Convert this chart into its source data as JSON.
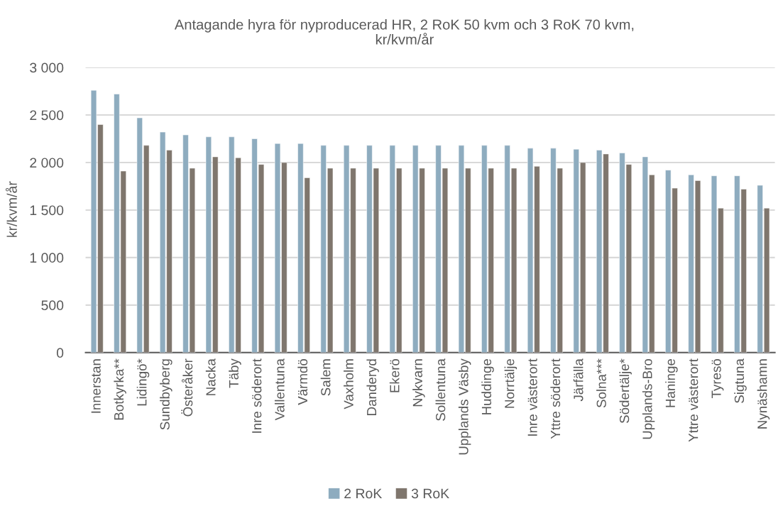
{
  "chart_data": {
    "type": "bar",
    "title": "Antagande hyra för nyproducerad HR, 2 RoK 50 kvm och 3 RoK 70 kvm,\nkr/kvm/år",
    "ylabel": "kr/kvm/år",
    "categories": [
      "Innerstan",
      "Botkyrka**",
      "Lidingö*",
      "Sundbyberg",
      "Österåker",
      "Nacka",
      "Täby",
      "Inre söderort",
      "Vallentuna",
      "Värmdö",
      "Salem",
      "Vaxholm",
      "Danderyd",
      "Ekerö",
      "Nykvarn",
      "Sollentuna",
      "Upplands Väsby",
      "Huddinge",
      "Norrtälje",
      "Inre västerort",
      "Yttre söderort",
      "Järfälla",
      "Solna***",
      "Södertälje*",
      "Upplands-Bro",
      "Haninge",
      "Yttre västerort",
      "Tyresö",
      "Sigtuna",
      "Nynäshamn"
    ],
    "series": [
      {
        "name": "2 RoK",
        "color": "#8eacbf",
        "values": [
          2760,
          2720,
          2470,
          2320,
          2290,
          2270,
          2270,
          2250,
          2200,
          2200,
          2180,
          2180,
          2180,
          2180,
          2180,
          2180,
          2180,
          2180,
          2180,
          2150,
          2150,
          2140,
          2130,
          2100,
          2060,
          1920,
          1870,
          1860,
          1860,
          1760
        ]
      },
      {
        "name": "3 RoK",
        "color": "#7f766d",
        "values": [
          2400,
          1910,
          2180,
          2130,
          1940,
          2060,
          2050,
          1980,
          2000,
          1840,
          1940,
          1940,
          1940,
          1940,
          1940,
          1940,
          1940,
          1940,
          1940,
          1960,
          1940,
          2000,
          2090,
          1980,
          1870,
          1730,
          1810,
          1520,
          1720,
          1520
        ]
      }
    ],
    "ylim": [
      0,
      3000
    ],
    "yticks": [
      0,
      500,
      {
        "value": 1000,
        "label": "1 000"
      },
      {
        "value": 1500,
        "label": "1 500"
      },
      {
        "value": 2000,
        "label": "2 000"
      },
      {
        "value": 2500,
        "label": "2 500"
      },
      {
        "value": 3000,
        "label": "3 000"
      }
    ],
    "grid": "y",
    "legend": "bottom"
  }
}
